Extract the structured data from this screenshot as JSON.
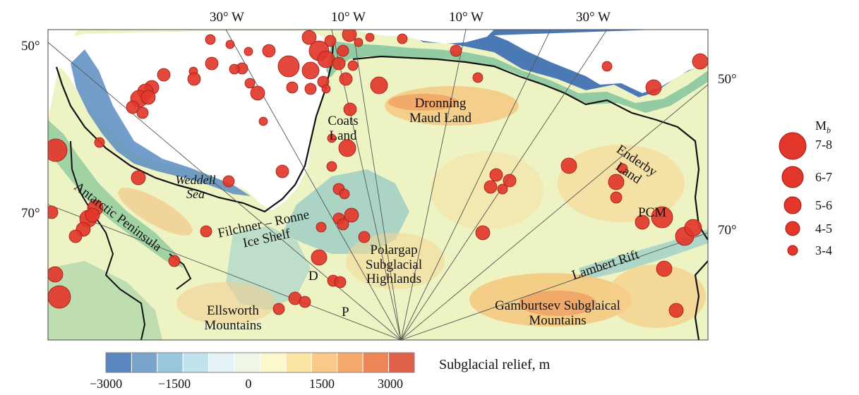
{
  "axis_labels": {
    "top": [
      "30° W",
      "10° W",
      "10° W",
      "30° W"
    ],
    "left": [
      "50°",
      "70°"
    ],
    "right": [
      "50°",
      "70°"
    ]
  },
  "regions": {
    "coats_land": "Coats Land",
    "dronning_maud_land": "Dronning Maud Land",
    "enderby_land": "Enderby Land",
    "weddell_sea": "Weddell Sea",
    "antarctic_peninsula": "Antarctic Peninsula",
    "filchner_ronne": "Filchner – Ronne Ice Shelf",
    "polargap": "Polargap Subglacial Highlands",
    "ellsworth": "Ellsworth Mountains",
    "gamburtsev": "Gamburtsev Subglaical Mountains",
    "lambert_rift": "Lambert Rift",
    "pcm": "PCM",
    "d": "D",
    "p": "P"
  },
  "magnitude_legend": {
    "title": "M",
    "title_sub": "b",
    "classes": [
      "7-8",
      "6-7",
      "5-6",
      "4-5",
      "3-4"
    ]
  },
  "colorbar": {
    "title": "Subglacial relief, m",
    "ticks": [
      "−3000",
      "−1500",
      "0",
      "1500",
      "3000"
    ],
    "colors": [
      "#5b86bf",
      "#7aa4cc",
      "#9ac6dc",
      "#c2e2ee",
      "#e4f2f6",
      "#eef7e6",
      "#fbf8cd",
      "#fbe5a4",
      "#f9c98a",
      "#f6a96c",
      "#ef8556",
      "#e0604a"
    ]
  },
  "colors": {
    "quake_fill": "#e2372a",
    "quake_stroke": "#9a1a14",
    "ocean_deep": "#3d6fae",
    "coastline": "#111111"
  }
}
